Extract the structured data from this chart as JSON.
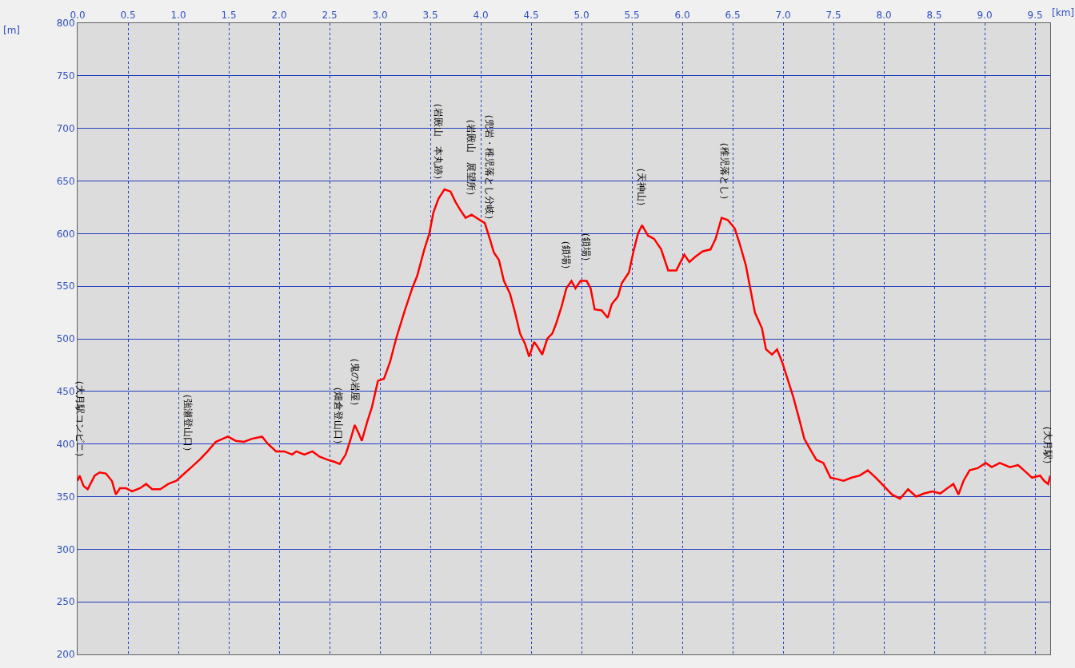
{
  "chart_data": {
    "type": "line",
    "xlabel": "[km]",
    "ylabel": "[m]",
    "x": [
      0.0,
      0.02,
      0.06,
      0.1,
      0.17,
      0.22,
      0.28,
      0.34,
      0.38,
      0.42,
      0.48,
      0.54,
      0.62,
      0.68,
      0.74,
      0.82,
      0.9,
      0.98,
      1.06,
      1.13,
      1.21,
      1.29,
      1.37,
      1.49,
      1.57,
      1.65,
      1.73,
      1.83,
      1.89,
      1.97,
      2.05,
      2.13,
      2.17,
      2.25,
      2.33,
      2.4,
      2.48,
      2.55,
      2.6,
      2.66,
      2.71,
      2.75,
      2.79,
      2.82,
      2.87,
      2.92,
      2.98,
      3.04,
      3.1,
      3.16,
      3.24,
      3.32,
      3.37,
      3.44,
      3.49,
      3.53,
      3.58,
      3.64,
      3.7,
      3.75,
      3.8,
      3.85,
      3.91,
      3.99,
      4.04,
      4.09,
      4.13,
      4.18,
      4.23,
      4.29,
      4.34,
      4.39,
      4.44,
      4.48,
      4.53,
      4.56,
      4.61,
      4.66,
      4.71,
      4.75,
      4.8,
      4.85,
      4.9,
      4.94,
      4.99,
      5.05,
      5.09,
      5.13,
      5.2,
      5.26,
      5.3,
      5.36,
      5.4,
      5.47,
      5.52,
      5.56,
      5.6,
      5.66,
      5.72,
      5.79,
      5.86,
      5.94,
      6.02,
      6.07,
      6.13,
      6.2,
      6.28,
      6.33,
      6.39,
      6.45,
      6.52,
      6.57,
      6.63,
      6.67,
      6.72,
      6.79,
      6.83,
      6.89,
      6.94,
      6.99,
      7.05,
      7.1,
      7.17,
      7.21,
      7.28,
      7.33,
      7.4,
      7.47,
      7.52,
      7.6,
      7.68,
      7.76,
      7.84,
      7.92,
      8.0,
      8.08,
      8.16,
      8.24,
      8.32,
      8.4,
      8.48,
      8.56,
      8.63,
      8.69,
      8.74,
      8.79,
      8.85,
      8.93,
      9.01,
      9.07,
      9.15,
      9.25,
      9.33,
      9.39,
      9.47,
      9.55,
      9.59,
      9.63,
      9.65
    ],
    "series": [
      {
        "color": "#ff0000",
        "values": [
          365,
          370,
          360,
          357,
          370,
          373,
          372,
          365,
          352,
          358,
          358,
          355,
          358,
          362,
          357,
          357,
          362,
          365,
          372,
          378,
          385,
          393,
          402,
          407,
          403,
          402,
          405,
          407,
          400,
          393,
          393,
          390,
          393,
          390,
          393,
          388,
          385,
          383,
          381,
          390,
          405,
          418,
          410,
          403,
          420,
          435,
          460,
          462,
          478,
          500,
          525,
          548,
          560,
          585,
          600,
          620,
          633,
          642,
          640,
          630,
          622,
          615,
          618,
          613,
          610,
          595,
          582,
          575,
          555,
          543,
          525,
          505,
          495,
          483,
          497,
          493,
          485,
          500,
          505,
          515,
          530,
          548,
          555,
          548,
          555,
          555,
          548,
          528,
          527,
          520,
          533,
          540,
          553,
          563,
          585,
          600,
          608,
          598,
          595,
          585,
          565,
          565,
          580,
          573,
          578,
          583,
          585,
          595,
          615,
          613,
          605,
          590,
          570,
          550,
          525,
          510,
          490,
          485,
          490,
          478,
          460,
          445,
          420,
          405,
          393,
          385,
          382,
          368,
          367,
          365,
          368,
          370,
          375,
          368,
          360,
          352,
          348,
          357,
          350,
          353,
          355,
          353,
          358,
          362,
          352,
          365,
          375,
          377,
          382,
          378,
          382,
          378,
          380,
          375,
          368,
          370,
          365,
          362,
          370
        ]
      }
    ],
    "xlim": [
      0,
      9.65
    ],
    "xticks": [
      {
        "value": 0,
        "label": "0.0"
      },
      0.5,
      {
        "value": 1,
        "label": "1.0"
      },
      1.5,
      {
        "value": 2,
        "label": "2.0"
      },
      2.5,
      {
        "value": 3,
        "label": "3.0"
      },
      3.5,
      {
        "value": 4,
        "label": "4.0"
      },
      4.5,
      {
        "value": 5,
        "label": "5.0"
      },
      5.5,
      {
        "value": 6,
        "label": "6.0"
      },
      6.5,
      {
        "value": 7,
        "label": "7.0"
      },
      7.5,
      {
        "value": 8,
        "label": "8.0"
      },
      8.5,
      {
        "value": 9,
        "label": "9.0"
      },
      9.5
    ],
    "ylim": [
      200,
      800
    ],
    "yticks": [
      200,
      250,
      300,
      350,
      400,
      450,
      500,
      550,
      600,
      650,
      700,
      750,
      800
    ],
    "grid": true,
    "marker": "none",
    "line_style": "solid",
    "annotations": [
      {
        "text": "（大月駅コンビニ）",
        "x": 0.02,
        "y": 370
      },
      {
        "text": "（強瀬登山口）",
        "x": 1.1,
        "y": 375
      },
      {
        "text": "（畑倉登山口）",
        "x": 2.59,
        "y": 381
      },
      {
        "text": "（鬼の岩屋）",
        "x": 2.75,
        "y": 418
      },
      {
        "text": "（岩殿山　本丸跡）",
        "x": 3.58,
        "y": 633
      },
      {
        "text": "（岩殿山　展望所）",
        "x": 3.91,
        "y": 618
      },
      {
        "text": "（兜岩・稚児落とし分岐）",
        "x": 4.09,
        "y": 595
      },
      {
        "text": "（鎖場）",
        "x": 4.85,
        "y": 548
      },
      {
        "text": "（鎖場）",
        "x": 5.05,
        "y": 555
      },
      {
        "text": "（天神山）",
        "x": 5.6,
        "y": 608
      },
      {
        "text": "（稚児落とし）",
        "x": 6.42,
        "y": 614
      },
      {
        "text": "（大月駅）",
        "x": 9.63,
        "y": 362
      }
    ]
  }
}
